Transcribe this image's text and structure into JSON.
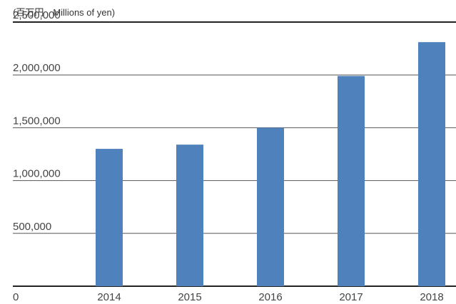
{
  "chart_data": {
    "type": "bar",
    "unit_label": "(百万円　Millions of yen)",
    "categories": [
      "2014",
      "2015",
      "2016",
      "2017",
      "2018"
    ],
    "values": [
      1300000,
      1340000,
      1500000,
      1990000,
      2310000
    ],
    "ylim": [
      0,
      2500000
    ],
    "yticks": [
      "0",
      "500,000",
      "1,000,000",
      "1,500,000",
      "2,000,000",
      "2,500,000"
    ],
    "title": "",
    "xlabel": "",
    "ylabel": "",
    "grid": true,
    "colors": {
      "bar": "#4f81bd",
      "gridline": "#555555",
      "axis": "#222222"
    }
  }
}
